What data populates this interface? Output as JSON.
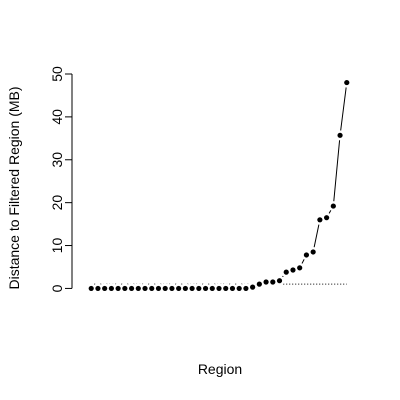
{
  "chart_data": {
    "type": "line",
    "x_label": "Region",
    "y_label": "Distance to Filtered Region (MB)",
    "x": [
      1,
      2,
      3,
      4,
      5,
      6,
      7,
      8,
      9,
      10,
      11,
      12,
      13,
      14,
      15,
      16,
      17,
      18,
      19,
      20,
      21,
      22,
      23,
      24,
      25,
      26,
      27,
      28,
      29,
      30,
      31,
      32,
      33,
      34,
      35,
      36,
      37,
      38,
      39
    ],
    "series": [
      {
        "color": "#000000",
        "values": [
          0,
          0,
          0,
          0,
          0,
          0,
          0,
          0,
          0,
          0,
          0,
          0,
          0,
          0,
          0,
          0,
          0,
          0,
          0,
          0,
          0,
          0,
          0,
          0,
          0.3,
          1,
          1.5,
          1.5,
          1.8,
          3.8,
          4.3,
          4.8,
          7.8,
          8.5,
          16,
          16.5,
          19.2,
          35.7,
          48
        ]
      }
    ],
    "reference_line": 1,
    "xlim": [
      -0.52,
      40.52
    ],
    "ylim": [
      -2,
      50
    ],
    "yticks": [
      0,
      10,
      20,
      30,
      40,
      50
    ]
  }
}
